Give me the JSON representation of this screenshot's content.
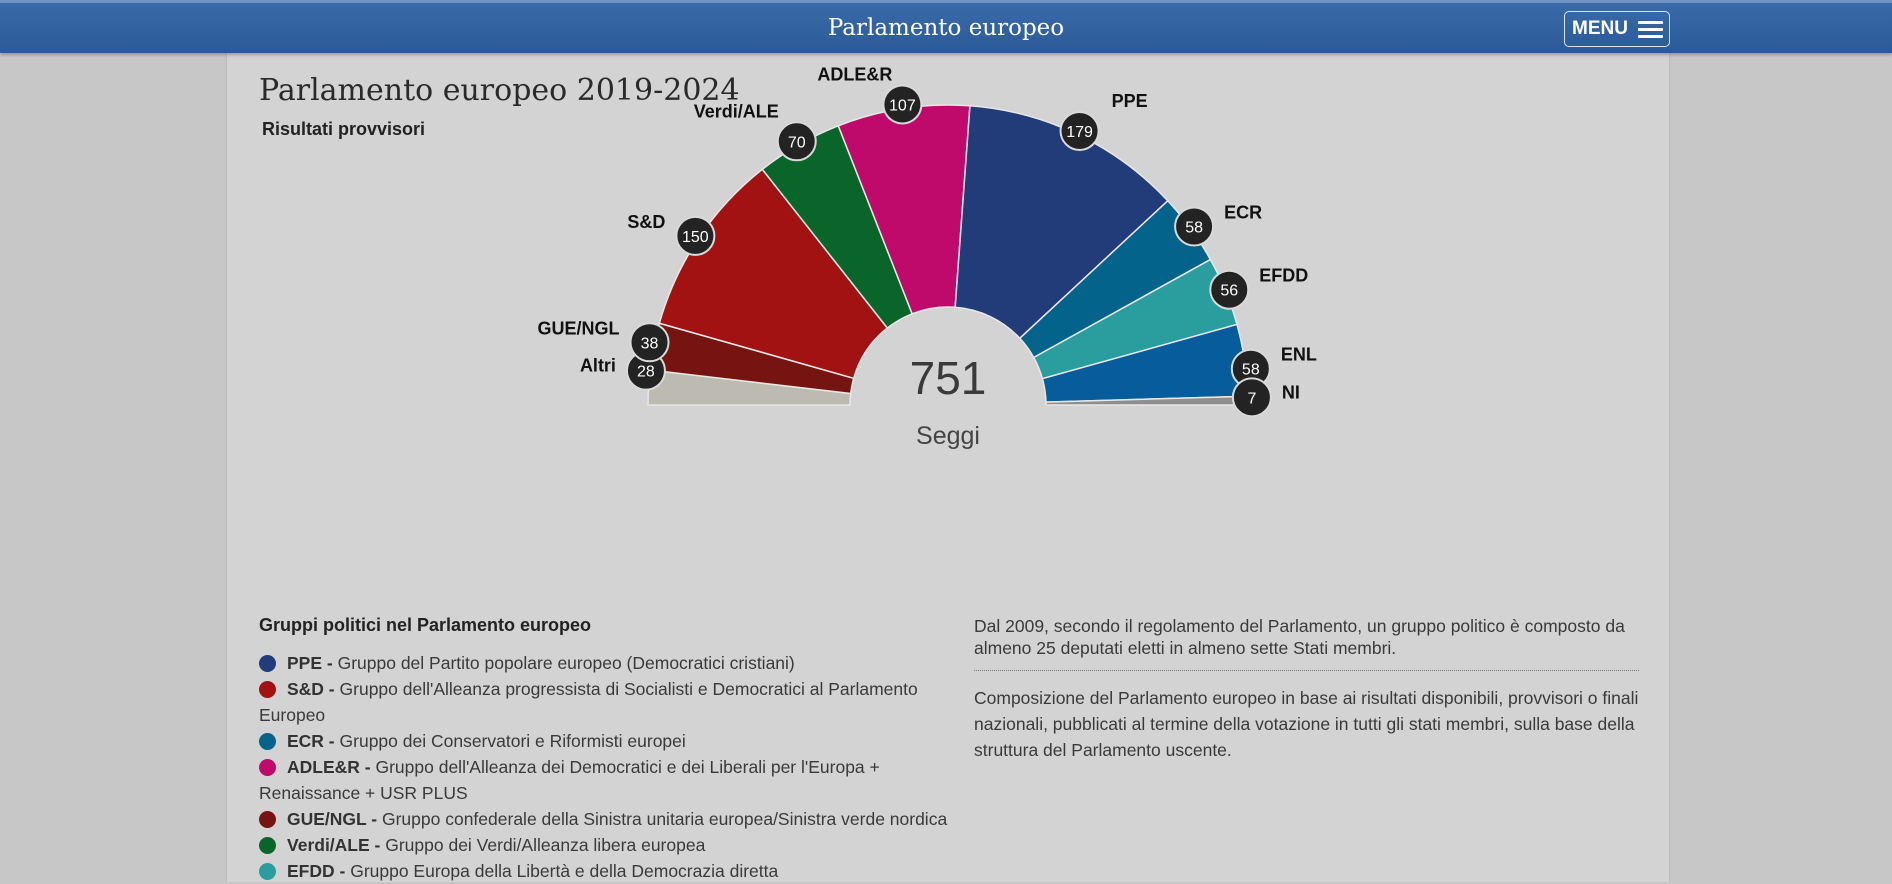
{
  "header": {
    "title": "Parlamento europeo",
    "menu_label": "MENU"
  },
  "page": {
    "title": "Parlamento europeo 2019-2024",
    "subtitle": "Risultati provvisori"
  },
  "chart_data": {
    "type": "parliament",
    "total": "751",
    "total_label": "Seggi",
    "segments": [
      {
        "name": "Altri",
        "seats": 28,
        "color": "#bdbab2"
      },
      {
        "name": "GUE/NGL",
        "seats": 38,
        "color": "#761412"
      },
      {
        "name": "S&D",
        "seats": 150,
        "color": "#a31212"
      },
      {
        "name": "Verdi/ALE",
        "seats": 70,
        "color": "#0a652b"
      },
      {
        "name": "ADLE&R",
        "seats": 107,
        "color": "#bf0a6c"
      },
      {
        "name": "PPE",
        "seats": 179,
        "color": "#223c79"
      },
      {
        "name": "ECR",
        "seats": 58,
        "color": "#04638a"
      },
      {
        "name": "EFDD",
        "seats": 56,
        "color": "#2a9d9f"
      },
      {
        "name": "ENL",
        "seats": 58,
        "color": "#075d9c"
      },
      {
        "name": "NI",
        "seats": 7,
        "color": "#8e8e8e"
      }
    ]
  },
  "groups": {
    "heading": "Gruppi politici nel Parlamento europeo",
    "items": [
      {
        "abbr": "PPE -",
        "desc": "Gruppo del Partito popolare europeo (Democratici cristiani)",
        "color": "#223c79"
      },
      {
        "abbr": "S&D -",
        "desc": "Gruppo dell'Alleanza progressista di Socialisti e Democratici al Parlamento Europeo",
        "color": "#a31212"
      },
      {
        "abbr": "ECR -",
        "desc": "Gruppo dei Conservatori e Riformisti europei",
        "color": "#04638a"
      },
      {
        "abbr": "ADLE&R -",
        "desc": "Gruppo dell'Alleanza dei Democratici e dei Liberali per l'Europa + Renaissance + USR PLUS",
        "color": "#bf0a6c"
      },
      {
        "abbr": "GUE/NGL -",
        "desc": "Gruppo confederale della Sinistra unitaria europea/Sinistra verde nordica",
        "color": "#761412"
      },
      {
        "abbr": "Verdi/ALE -",
        "desc": "Gruppo dei Verdi/Alleanza libera europea",
        "color": "#0a652b"
      },
      {
        "abbr": "EFDD -",
        "desc": "Gruppo Europa della Libertà e della Democrazia diretta",
        "color": "#2a9d9f"
      }
    ]
  },
  "info": {
    "p1": "Dal 2009, secondo il regolamento del Parlamento, un gruppo politico è composto da almeno 25 deputati eletti in almeno sette Stati membri.",
    "p2": "Composizione del Parlamento europeo in base ai risultati disponibili, provvisori o finali nazionali, pubblicati al termine della votazione in tutti gli stati membri, sulla base della struttura del Parlamento uscente."
  }
}
